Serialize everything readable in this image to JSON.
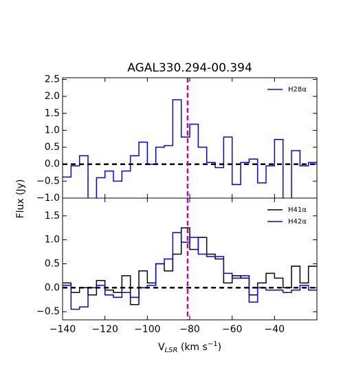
{
  "chart_data": [
    {
      "type": "step",
      "title": "AGAL330.294-00.394",
      "ylabel": "Flux (Jy)",
      "x": [
        -140,
        -136,
        -132,
        -128,
        -124,
        -120,
        -116,
        -112,
        -108,
        -104,
        -100,
        -96,
        -92,
        -88,
        -84,
        -80,
        -76,
        -72,
        -68,
        -64,
        -60,
        -56,
        -52,
        -48,
        -44,
        -40,
        -36,
        -32,
        -28,
        -24
      ],
      "series": [
        {
          "name": "H28α",
          "color": "#0000ff",
          "values": [
            -0.38,
            -0.05,
            0.25,
            -1.1,
            -0.4,
            -0.2,
            -0.5,
            -0.2,
            0.25,
            0.65,
            0.0,
            0.5,
            0.55,
            1.9,
            0.8,
            1.18,
            0.5,
            0.05,
            -0.1,
            0.8,
            -0.6,
            0.05,
            0.15,
            -0.55,
            -0.05,
            0.73,
            -1.1,
            0.4,
            -0.05,
            0.05
          ]
        }
      ],
      "xlim": [
        -140,
        -20
      ],
      "ylim": [
        -1.0,
        2.55
      ],
      "yticks": [
        {
          "value": 2.5,
          "label": "2.5"
        },
        {
          "value": 2.0,
          "label": "2.0"
        },
        {
          "value": 1.5,
          "label": "1.5"
        },
        {
          "value": 1.0,
          "label": "1.0"
        },
        {
          "value": 0.5,
          "label": "0.5"
        },
        {
          "value": 0.0,
          "label": "0.0"
        },
        {
          "value": -0.5,
          "label": "−0.5"
        },
        {
          "value": -1.0,
          "label": "−1.0"
        }
      ],
      "hline": 0,
      "vline": -81,
      "vline_color": "#bf00bf",
      "legend": "upper right"
    },
    {
      "type": "step",
      "xlabel": [
        "V",
        "LSR",
        " (km s",
        "−1",
        ")"
      ],
      "x": [
        -140,
        -136,
        -132,
        -128,
        -124,
        -120,
        -116,
        -112,
        -108,
        -104,
        -100,
        -96,
        -92,
        -88,
        -84,
        -80,
        -76,
        -72,
        -68,
        -64,
        -60,
        -56,
        -52,
        -48,
        -44,
        -40,
        -36,
        -32,
        -28,
        -24
      ],
      "series": [
        {
          "name": "H41α",
          "color": "#000000",
          "values": [
            0.1,
            -0.1,
            0.0,
            -0.15,
            0.15,
            -0.05,
            -0.1,
            0.25,
            -0.35,
            0.35,
            0.1,
            0.5,
            0.35,
            0.7,
            1.25,
            0.8,
            1.05,
            0.7,
            0.6,
            0.1,
            0.25,
            0.2,
            -0.15,
            0.1,
            0.3,
            0.2,
            0.0,
            0.45,
            0.1,
            0.45
          ]
        },
        {
          "name": "H42α",
          "color": "#0000ff",
          "values": [
            0.05,
            -0.45,
            -0.4,
            0.0,
            0.05,
            -0.15,
            -0.2,
            -0.1,
            -0.2,
            0.0,
            0.05,
            0.5,
            0.6,
            1.15,
            0.95,
            1.05,
            0.7,
            0.65,
            0.65,
            0.3,
            0.2,
            0.25,
            -0.3,
            0.0,
            -0.05,
            -0.05,
            -0.1,
            -0.05,
            0.05,
            -0.05
          ]
        }
      ],
      "xlim": [
        -140,
        -20
      ],
      "ylim": [
        -0.67,
        1.87
      ],
      "xticks": [
        {
          "value": -140,
          "label": "−140"
        },
        {
          "value": -120,
          "label": "−120"
        },
        {
          "value": -100,
          "label": "−100"
        },
        {
          "value": -80,
          "label": "−80"
        },
        {
          "value": -60,
          "label": "−60"
        },
        {
          "value": -40,
          "label": "−40"
        }
      ],
      "yticks": [
        {
          "value": 1.5,
          "label": "1.5"
        },
        {
          "value": 1.0,
          "label": "1.0"
        },
        {
          "value": 0.5,
          "label": "0.5"
        },
        {
          "value": 0.0,
          "label": "0.0"
        },
        {
          "value": -0.5,
          "label": "−0.5"
        }
      ],
      "hline": 0,
      "vline": -81,
      "vline_color": "#bf00bf",
      "legend": "upper right"
    }
  ]
}
